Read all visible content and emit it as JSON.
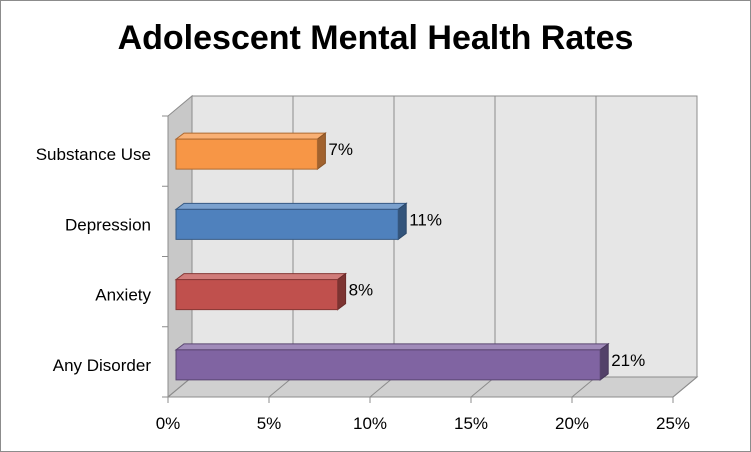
{
  "chart_data": {
    "type": "bar",
    "orientation": "horizontal",
    "title": "Adolescent Mental Health Rates",
    "categories": [
      "Substance Use",
      "Depression",
      "Anxiety",
      "Any Disorder"
    ],
    "values": [
      7,
      11,
      8,
      21
    ],
    "value_labels": [
      "7%",
      "11%",
      "8%",
      "21%"
    ],
    "colors": [
      "#f79646",
      "#4f81bd",
      "#c0504d",
      "#8064a2"
    ],
    "xlim": [
      0,
      25
    ],
    "x_ticks": [
      0,
      5,
      10,
      15,
      20,
      25
    ],
    "x_tick_labels": [
      "0%",
      "5%",
      "10%",
      "15%",
      "20%",
      "25%"
    ],
    "xlabel": "",
    "ylabel": "",
    "grid": true,
    "style": "3d"
  }
}
